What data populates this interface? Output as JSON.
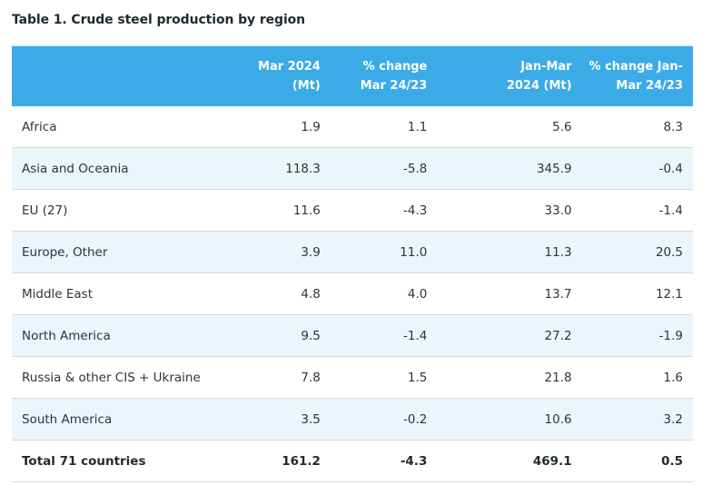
{
  "title": "Table 1. Crude steel production by region",
  "table": {
    "headers": [
      {
        "line1": "",
        "line2": ""
      },
      {
        "line1": "Mar 2024",
        "line2": "(Mt)"
      },
      {
        "line1": "% change",
        "line2": "Mar 24/23"
      },
      {
        "line1": "Jan-Mar",
        "line2": "2024 (Mt)"
      },
      {
        "line1": "% change Jan-",
        "line2": "Mar 24/23"
      }
    ],
    "rows": [
      {
        "region": "Africa",
        "mar2024": "1.9",
        "chg_mar": "1.1",
        "janmar2024": "5.6",
        "chg_janmar": "8.3"
      },
      {
        "region": "Asia and Oceania",
        "mar2024": "118.3",
        "chg_mar": "-5.8",
        "janmar2024": "345.9",
        "chg_janmar": "-0.4"
      },
      {
        "region": "EU (27)",
        "mar2024": "11.6",
        "chg_mar": "-4.3",
        "janmar2024": "33.0",
        "chg_janmar": "-1.4"
      },
      {
        "region": "Europe, Other",
        "mar2024": "3.9",
        "chg_mar": "11.0",
        "janmar2024": "11.3",
        "chg_janmar": "20.5"
      },
      {
        "region": "Middle East",
        "mar2024": "4.8",
        "chg_mar": "4.0",
        "janmar2024": "13.7",
        "chg_janmar": "12.1"
      },
      {
        "region": "North America",
        "mar2024": "9.5",
        "chg_mar": "-1.4",
        "janmar2024": "27.2",
        "chg_janmar": "-1.9"
      },
      {
        "region": "Russia & other CIS + Ukraine",
        "mar2024": "7.8",
        "chg_mar": "1.5",
        "janmar2024": "21.8",
        "chg_janmar": "1.6"
      },
      {
        "region": "South America",
        "mar2024": "3.5",
        "chg_mar": "-0.2",
        "janmar2024": "10.6",
        "chg_janmar": "3.2"
      }
    ],
    "total": {
      "region": "Total 71 countries",
      "mar2024": "161.2",
      "chg_mar": "-4.3",
      "janmar2024": "469.1",
      "chg_janmar": "0.5"
    }
  },
  "colors": {
    "header_bg": "#3babe8",
    "alt_row_bg": "#eaf5fc"
  }
}
